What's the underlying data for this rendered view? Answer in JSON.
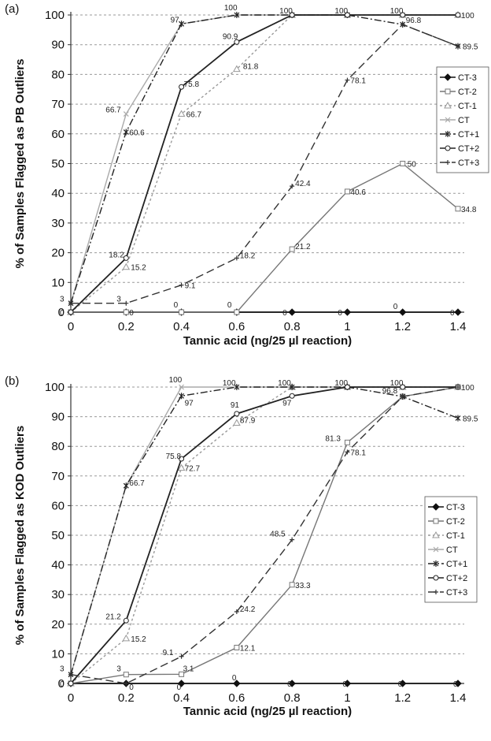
{
  "chart_data": [
    {
      "type": "line",
      "panel_label": "(a)",
      "xlabel": "Tannic acid (ng/25 µl reaction)",
      "ylabel": "% of Samples Flagged as PB Outliers",
      "x": [
        0,
        0.2,
        0.4,
        0.6,
        0.8,
        1,
        1.2,
        1.4
      ],
      "x_tick_labels": [
        "0",
        "0.2",
        "0.4",
        "0.6",
        "0.8",
        "1",
        "1.2",
        "1.4"
      ],
      "ylim": [
        0,
        100
      ],
      "y_ticks": [
        0,
        10,
        20,
        30,
        40,
        50,
        60,
        70,
        80,
        90,
        100
      ],
      "grid": "horizontal dashed",
      "legend_position": "right",
      "series": [
        {
          "name": "CT-3",
          "color": "#111111",
          "dash": "",
          "marker": "diamond",
          "values": [
            0,
            0,
            0,
            0,
            0,
            0,
            0,
            0
          ]
        },
        {
          "name": "CT-2",
          "color": "#777777",
          "dash": "",
          "marker": "square",
          "values": [
            0,
            0,
            0,
            0,
            21.2,
            40.6,
            50,
            34.8
          ]
        },
        {
          "name": "CT-1",
          "color": "#999999",
          "dash": "3,3",
          "marker": "triangle",
          "values": [
            0,
            15.2,
            66.7,
            81.8,
            100,
            100,
            100,
            100
          ]
        },
        {
          "name": "CT",
          "color": "#aaaaaa",
          "dash": "",
          "marker": "x",
          "values": [
            3,
            66.7,
            97,
            100,
            100,
            100,
            100,
            100
          ]
        },
        {
          "name": "CT+1",
          "color": "#222222",
          "dash": "9,3,2,3",
          "marker": "star",
          "values": [
            3,
            60.6,
            97,
            100,
            100,
            100,
            96.8,
            89.5
          ]
        },
        {
          "name": "CT+2",
          "color": "#222222",
          "dash": "",
          "marker": "circle",
          "values": [
            0,
            18.2,
            75.8,
            90.9,
            100,
            100,
            100,
            100
          ]
        },
        {
          "name": "CT+3",
          "color": "#333333",
          "dash": "10,5",
          "marker": "plus",
          "values": [
            3,
            3,
            9.1,
            18.2,
            42.4,
            78.1,
            96.8,
            89.5
          ]
        }
      ],
      "data_labels": [
        {
          "x": 0,
          "y": 3,
          "text": "3"
        },
        {
          "x": 0,
          "y": 0,
          "text": "0"
        },
        {
          "x": 0.2,
          "y": 3,
          "text": "3"
        },
        {
          "x": 0.2,
          "y": 0,
          "text": "0"
        },
        {
          "x": 0.2,
          "y": 66.7,
          "text": "66.7"
        },
        {
          "x": 0.2,
          "y": 60.6,
          "text": "60.6"
        },
        {
          "x": 0.2,
          "y": 18.2,
          "text": "18.2"
        },
        {
          "x": 0.2,
          "y": 15.2,
          "text": "15.2"
        },
        {
          "x": 0.4,
          "y": 97,
          "text": "97"
        },
        {
          "x": 0.4,
          "y": 75.8,
          "text": "75.8"
        },
        {
          "x": 0.4,
          "y": 66.7,
          "text": "66.7"
        },
        {
          "x": 0.4,
          "y": 9.1,
          "text": "9.1"
        },
        {
          "x": 0.4,
          "y": 0,
          "text": "0"
        },
        {
          "x": 0.6,
          "y": 100,
          "text": "100"
        },
        {
          "x": 0.6,
          "y": 90.9,
          "text": "90.9"
        },
        {
          "x": 0.6,
          "y": 81.8,
          "text": "81.8"
        },
        {
          "x": 0.6,
          "y": 18.2,
          "text": "18.2"
        },
        {
          "x": 0.6,
          "y": 0,
          "text": "0"
        },
        {
          "x": 0.8,
          "y": 100,
          "text": "100"
        },
        {
          "x": 0.8,
          "y": 42.4,
          "text": "42.4"
        },
        {
          "x": 0.8,
          "y": 21.2,
          "text": "21.2"
        },
        {
          "x": 0.8,
          "y": 0,
          "text": "0"
        },
        {
          "x": 1,
          "y": 100,
          "text": "100"
        },
        {
          "x": 1,
          "y": 78.1,
          "text": "78.1"
        },
        {
          "x": 1,
          "y": 40.6,
          "text": "40.6"
        },
        {
          "x": 1,
          "y": 0,
          "text": "0"
        },
        {
          "x": 1.2,
          "y": 100,
          "text": "100"
        },
        {
          "x": 1.2,
          "y": 96.8,
          "text": "96.8"
        },
        {
          "x": 1.2,
          "y": 50,
          "text": "50"
        },
        {
          "x": 1.2,
          "y": 0,
          "text": "0"
        },
        {
          "x": 1.4,
          "y": 100,
          "text": "100"
        },
        {
          "x": 1.4,
          "y": 89.5,
          "text": "89.5"
        },
        {
          "x": 1.4,
          "y": 34.8,
          "text": "34.8"
        },
        {
          "x": 1.4,
          "y": 0,
          "text": "0"
        }
      ]
    },
    {
      "type": "line",
      "panel_label": "(b)",
      "xlabel": "Tannic acid (ng/25 µl reaction)",
      "ylabel": "% of Samples Flagged as KOD Outliers",
      "x": [
        0,
        0.2,
        0.4,
        0.6,
        0.8,
        1,
        1.2,
        1.4
      ],
      "x_tick_labels": [
        "0",
        "0.2",
        "0.4",
        "0.6",
        "0.8",
        "1",
        "1.2",
        "1.4"
      ],
      "ylim": [
        0,
        100
      ],
      "y_ticks": [
        0,
        10,
        20,
        30,
        40,
        50,
        60,
        70,
        80,
        90,
        100
      ],
      "grid": "horizontal dashed",
      "legend_position": "right",
      "series": [
        {
          "name": "CT-3",
          "color": "#111111",
          "dash": "",
          "marker": "diamond",
          "values": [
            0,
            0,
            0,
            0,
            0,
            0,
            0,
            0
          ]
        },
        {
          "name": "CT-2",
          "color": "#777777",
          "dash": "",
          "marker": "square",
          "values": [
            0,
            3,
            3.1,
            12.1,
            33.3,
            81.3,
            96.8,
            100
          ]
        },
        {
          "name": "CT-1",
          "color": "#999999",
          "dash": "3,3",
          "marker": "triangle",
          "values": [
            0,
            15.2,
            72.7,
            87.9,
            100,
            100,
            100,
            100
          ]
        },
        {
          "name": "CT",
          "color": "#aaaaaa",
          "dash": "",
          "marker": "x",
          "values": [
            3,
            66.7,
            100,
            100,
            100,
            100,
            100,
            100
          ]
        },
        {
          "name": "CT+1",
          "color": "#222222",
          "dash": "9,3,2,3",
          "marker": "star",
          "values": [
            3,
            66.7,
            97,
            100,
            100,
            100,
            96.8,
            89.5
          ]
        },
        {
          "name": "CT+2",
          "color": "#222222",
          "dash": "",
          "marker": "circle",
          "values": [
            0,
            21.2,
            75.8,
            91,
            97,
            100,
            100,
            100
          ]
        },
        {
          "name": "CT+3",
          "color": "#333333",
          "dash": "10,5",
          "marker": "plus",
          "values": [
            3,
            0,
            9.1,
            24.2,
            48.5,
            78.1,
            96.8,
            100
          ]
        }
      ],
      "data_labels": [
        {
          "x": 0,
          "y": 3,
          "text": "3"
        },
        {
          "x": 0,
          "y": 0,
          "text": "0"
        },
        {
          "x": 0.2,
          "y": 66.7,
          "text": "66.7"
        },
        {
          "x": 0.2,
          "y": 21.2,
          "text": "21.2"
        },
        {
          "x": 0.2,
          "y": 15.2,
          "text": "15.2"
        },
        {
          "x": 0.2,
          "y": 3,
          "text": "3"
        },
        {
          "x": 0.2,
          "y": 0,
          "text": "0"
        },
        {
          "x": 0.4,
          "y": 100,
          "text": "100"
        },
        {
          "x": 0.4,
          "y": 97,
          "text": "97"
        },
        {
          "x": 0.4,
          "y": 75.8,
          "text": "75.8"
        },
        {
          "x": 0.4,
          "y": 72.7,
          "text": "72.7"
        },
        {
          "x": 0.4,
          "y": 9.1,
          "text": "9.1"
        },
        {
          "x": 0.4,
          "y": 3.1,
          "text": "3.1"
        },
        {
          "x": 0.4,
          "y": 0,
          "text": "0"
        },
        {
          "x": 0.6,
          "y": 100,
          "text": "100"
        },
        {
          "x": 0.6,
          "y": 91,
          "text": "91"
        },
        {
          "x": 0.6,
          "y": 87.9,
          "text": "87.9"
        },
        {
          "x": 0.6,
          "y": 24.2,
          "text": "24.2"
        },
        {
          "x": 0.6,
          "y": 12.1,
          "text": "12.1"
        },
        {
          "x": 0.6,
          "y": 0,
          "text": "0"
        },
        {
          "x": 0.8,
          "y": 100,
          "text": "100"
        },
        {
          "x": 0.8,
          "y": 97,
          "text": "97"
        },
        {
          "x": 0.8,
          "y": 48.5,
          "text": "48.5"
        },
        {
          "x": 0.8,
          "y": 33.3,
          "text": "33.3"
        },
        {
          "x": 0.8,
          "y": 0,
          "text": "0"
        },
        {
          "x": 1,
          "y": 100,
          "text": "100"
        },
        {
          "x": 1,
          "y": 81.3,
          "text": "81.3"
        },
        {
          "x": 1,
          "y": 78.1,
          "text": "78.1"
        },
        {
          "x": 1,
          "y": 0,
          "text": "0"
        },
        {
          "x": 1.2,
          "y": 100,
          "text": "100"
        },
        {
          "x": 1.2,
          "y": 96.8,
          "text": "96.8"
        },
        {
          "x": 1.2,
          "y": 0,
          "text": "0"
        },
        {
          "x": 1.4,
          "y": 100,
          "text": "100"
        },
        {
          "x": 1.4,
          "y": 89.5,
          "text": "89.5"
        },
        {
          "x": 1.4,
          "y": 0,
          "text": "0"
        }
      ]
    }
  ]
}
